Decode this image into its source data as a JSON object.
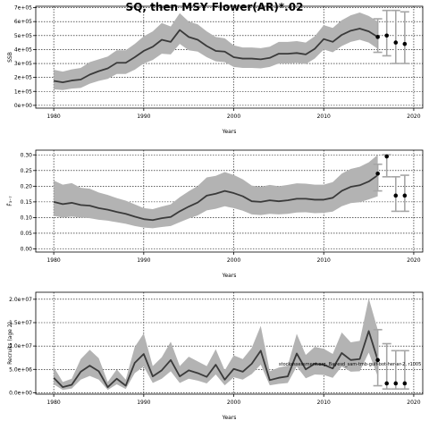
{
  "title": "SQ, then MSY Flower(AR)*.02",
  "note": "stockassessment.org, Bayesd_sam-tmb-gulf-bot-her-ar-2, r1005",
  "chart_data": [
    {
      "type": "line",
      "ylabel": "SSB",
      "xlabel": "Years",
      "xlim": [
        1978,
        2021
      ],
      "ylim": [
        -20000,
        710000
      ],
      "xticks": [
        1980,
        1990,
        2000,
        2010,
        2020
      ],
      "yticks": [
        0,
        100000,
        200000,
        300000,
        400000,
        500000,
        600000,
        700000
      ],
      "ytick_labels": [
        "0e+00",
        "1e+05",
        "2e+05",
        "3e+05",
        "4e+05",
        "5e+05",
        "6e+05",
        "7e+05"
      ],
      "grid": true,
      "x": [
        1980,
        1981,
        1982,
        1983,
        1984,
        1985,
        1986,
        1987,
        1988,
        1989,
        1990,
        1991,
        1992,
        1993,
        1994,
        1995,
        1996,
        1997,
        1998,
        1999,
        2000,
        2001,
        2002,
        2003,
        2004,
        2005,
        2006,
        2007,
        2008,
        2009,
        2010,
        2011,
        2012,
        2013,
        2014,
        2015,
        2016
      ],
      "estimate": [
        175000,
        165000,
        178000,
        185000,
        220000,
        245000,
        265000,
        305000,
        305000,
        345000,
        390000,
        420000,
        470000,
        455000,
        540000,
        490000,
        470000,
        425000,
        390000,
        385000,
        345000,
        335000,
        335000,
        330000,
        340000,
        370000,
        370000,
        375000,
        365000,
        405000,
        475000,
        455000,
        505000,
        535000,
        550000,
        530000,
        490000
      ],
      "lower": [
        115000,
        110000,
        120000,
        125000,
        155000,
        175000,
        190000,
        225000,
        225000,
        255000,
        300000,
        325000,
        370000,
        365000,
        440000,
        395000,
        385000,
        345000,
        315000,
        310000,
        275000,
        268000,
        268000,
        265000,
        275000,
        300000,
        300000,
        305000,
        295000,
        335000,
        400000,
        380000,
        425000,
        455000,
        470000,
        450000,
        405000
      ],
      "upper": [
        255000,
        242000,
        258000,
        268000,
        310000,
        330000,
        350000,
        395000,
        395000,
        440000,
        495000,
        530000,
        590000,
        565000,
        660000,
        600000,
        580000,
        530000,
        490000,
        480000,
        430000,
        415000,
        415000,
        410000,
        420000,
        455000,
        455000,
        460000,
        450000,
        495000,
        575000,
        555000,
        610000,
        645000,
        665000,
        640000,
        600000
      ],
      "forecast": [
        {
          "year": 2016,
          "value": 490000,
          "low": 380000,
          "high": 620000
        },
        {
          "year": 2017,
          "value": 500000,
          "low": 355000,
          "high": 680000
        },
        {
          "year": 2018,
          "value": 450000,
          "low": 300000,
          "high": 680000
        },
        {
          "year": 2019,
          "value": 440000,
          "low": 300000,
          "high": 670000
        }
      ]
    },
    {
      "type": "line",
      "ylabel": "F̄₃₋₇",
      "xlabel": "Years",
      "xlim": [
        1978,
        2021
      ],
      "ylim": [
        -0.01,
        0.315
      ],
      "xticks": [
        1980,
        1990,
        2000,
        2010,
        2020
      ],
      "yticks": [
        0,
        0.05,
        0.1,
        0.15,
        0.2,
        0.25,
        0.3
      ],
      "ytick_labels": [
        "0.00",
        "0.05",
        "0.10",
        "0.15",
        "0.20",
        "0.25",
        "0.30"
      ],
      "grid": true,
      "x": [
        1980,
        1981,
        1982,
        1983,
        1984,
        1985,
        1986,
        1987,
        1988,
        1989,
        1990,
        1991,
        1992,
        1993,
        1994,
        1995,
        1996,
        1997,
        1998,
        1999,
        2000,
        2001,
        2002,
        2003,
        2004,
        2005,
        2006,
        2007,
        2008,
        2009,
        2010,
        2011,
        2012,
        2013,
        2014,
        2015,
        2016
      ],
      "estimate": [
        0.15,
        0.143,
        0.147,
        0.14,
        0.138,
        0.13,
        0.125,
        0.118,
        0.112,
        0.103,
        0.095,
        0.092,
        0.098,
        0.102,
        0.12,
        0.135,
        0.148,
        0.17,
        0.176,
        0.185,
        0.178,
        0.168,
        0.152,
        0.15,
        0.155,
        0.152,
        0.155,
        0.16,
        0.16,
        0.157,
        0.157,
        0.163,
        0.185,
        0.198,
        0.203,
        0.215,
        0.235
      ],
      "lower": [
        0.105,
        0.1,
        0.103,
        0.1,
        0.098,
        0.093,
        0.09,
        0.085,
        0.08,
        0.073,
        0.068,
        0.066,
        0.07,
        0.073,
        0.085,
        0.097,
        0.107,
        0.123,
        0.128,
        0.136,
        0.13,
        0.122,
        0.11,
        0.108,
        0.112,
        0.11,
        0.112,
        0.116,
        0.117,
        0.114,
        0.115,
        0.119,
        0.136,
        0.146,
        0.149,
        0.158,
        0.168
      ],
      "upper": [
        0.218,
        0.205,
        0.21,
        0.195,
        0.192,
        0.18,
        0.172,
        0.162,
        0.154,
        0.142,
        0.13,
        0.127,
        0.135,
        0.142,
        0.165,
        0.184,
        0.201,
        0.228,
        0.233,
        0.245,
        0.236,
        0.222,
        0.202,
        0.198,
        0.204,
        0.2,
        0.204,
        0.209,
        0.208,
        0.205,
        0.205,
        0.213,
        0.24,
        0.255,
        0.262,
        0.276,
        0.3
      ],
      "forecast": [
        {
          "year": 2016,
          "value": 0.24,
          "low": 0.185,
          "high": 0.27
        },
        {
          "year": 2017,
          "value": 0.295,
          "low": 0.23,
          "high": 0.3
        },
        {
          "year": 2018,
          "value": 0.17,
          "low": 0.12,
          "high": 0.23
        },
        {
          "year": 2019,
          "value": 0.17,
          "low": 0.12,
          "high": 0.235
        }
      ]
    },
    {
      "type": "line",
      "ylabel": "Recruits (age 2)",
      "xlabel": "Years",
      "xlim": [
        1978,
        2021
      ],
      "ylim": [
        -300000,
        21500000
      ],
      "xticks": [
        1980,
        1990,
        2000,
        2010,
        2020
      ],
      "yticks": [
        0,
        5000000,
        10000000,
        15000000,
        20000000
      ],
      "ytick_labels": [
        "0.0e+00",
        "5.0e+06",
        "1.0e+07",
        "1.5e+07",
        "2.0e+07"
      ],
      "grid": true,
      "x": [
        1980,
        1981,
        1982,
        1983,
        1984,
        1985,
        1986,
        1987,
        1988,
        1989,
        1990,
        1991,
        1992,
        1993,
        1994,
        1995,
        1996,
        1997,
        1998,
        1999,
        2000,
        2001,
        2002,
        2003,
        2004,
        2005,
        2006,
        2007,
        2008,
        2009,
        2010,
        2011,
        2012,
        2013,
        2014,
        2015,
        2016
      ],
      "estimate": [
        3200000,
        1200000,
        1700000,
        4500000,
        5800000,
        4600000,
        1200000,
        3000000,
        1500000,
        6400000,
        8300000,
        3500000,
        4800000,
        7000000,
        3500000,
        4800000,
        4200000,
        3400000,
        6000000,
        2800000,
        5100000,
        4500000,
        6200000,
        9000000,
        2700000,
        3200000,
        3500000,
        8400000,
        5000000,
        6200000,
        6000000,
        5200000,
        8500000,
        7000000,
        7200000,
        13200000,
        7000000
      ],
      "lower": [
        1800000,
        600000,
        900000,
        2800000,
        3600000,
        2800000,
        600000,
        1800000,
        800000,
        4200000,
        5600000,
        2100000,
        3000000,
        4600000,
        2100000,
        3000000,
        2600000,
        2000000,
        3900000,
        1600000,
        3300000,
        2800000,
        4000000,
        6000000,
        1600000,
        1900000,
        2100000,
        5600000,
        3100000,
        3900000,
        3800000,
        3200000,
        5600000,
        4500000,
        4600000,
        8600000,
        3500000
      ],
      "upper": [
        5500000,
        2300000,
        3000000,
        7200000,
        9200000,
        7400000,
        2300000,
        5000000,
        2800000,
        9800000,
        12700000,
        5700000,
        7600000,
        10900000,
        5700000,
        7700000,
        6700000,
        5700000,
        9300000,
        4800000,
        8000000,
        7200000,
        9600000,
        14300000,
        4600000,
        5400000,
        5800000,
        12600000,
        8100000,
        9800000,
        9400000,
        8300000,
        12900000,
        10800000,
        11100000,
        20200000,
        13500000
      ],
      "forecast": [
        {
          "year": 2016,
          "value": 7000000,
          "low": 1500000,
          "high": 13500000
        },
        {
          "year": 2017,
          "value": 2000000,
          "low": 800000,
          "high": 10500000
        },
        {
          "year": 2018,
          "value": 2000000,
          "low": 800000,
          "high": 9000000
        },
        {
          "year": 2019,
          "value": 2000000,
          "low": 800000,
          "high": 9000000
        }
      ]
    }
  ]
}
